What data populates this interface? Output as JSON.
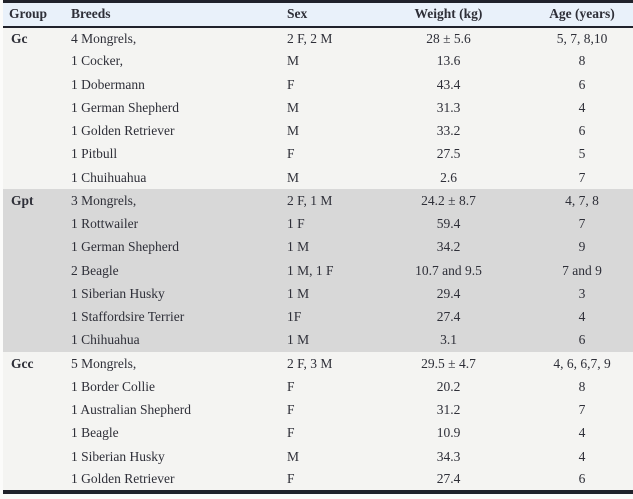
{
  "colors": {
    "border_dark": "#20222b",
    "header_background": "#e9f1fa",
    "shaded_band": "#d8d8d8",
    "row_background": "#f4f4f2",
    "text": "#2e2f38",
    "page_background": "#fbfbfa"
  },
  "table": {
    "columns": [
      {
        "label": "Group",
        "align": "left"
      },
      {
        "label": "Breeds",
        "align": "left"
      },
      {
        "label": "Sex",
        "align": "left"
      },
      {
        "label": "Weight (kg)",
        "align": "center"
      },
      {
        "label": "Age (years)",
        "align": "center"
      }
    ],
    "groups": [
      {
        "name": "Gc",
        "shaded": false,
        "rows": [
          {
            "breed": "4 Mongrels,",
            "sex": "2 F, 2 M",
            "weight": "28 ± 5.6",
            "age": "5, 7, 8,10"
          },
          {
            "breed": "1 Cocker,",
            "sex": "M",
            "weight": "13.6",
            "age": "8"
          },
          {
            "breed": "1 Dobermann",
            "sex": "F",
            "weight": "43.4",
            "age": "6"
          },
          {
            "breed": "1 German Shepherd",
            "sex": "M",
            "weight": "31.3",
            "age": "4"
          },
          {
            "breed": "1 Golden Retriever",
            "sex": "M",
            "weight": "33.2",
            "age": "6"
          },
          {
            "breed": "1 Pitbull",
            "sex": "F",
            "weight": "27.5",
            "age": "5"
          },
          {
            "breed": "1 Chuihuahua",
            "sex": "M",
            "weight": "2.6",
            "age": "7"
          }
        ]
      },
      {
        "name": "Gpt",
        "shaded": true,
        "rows": [
          {
            "breed": "3 Mongrels,",
            "sex": "2 F, 1 M",
            "weight": "24.2 ± 8.7",
            "age": "4, 7, 8"
          },
          {
            "breed": "1 Rottwailer",
            "sex": "1 F",
            "weight": "59.4",
            "age": "7"
          },
          {
            "breed": "1 German Shepherd",
            "sex": "1 M",
            "weight": "34.2",
            "age": "9"
          },
          {
            "breed": "2 Beagle",
            "sex": "1 M, 1 F",
            "weight": "10.7 and 9.5",
            "age": "7 and 9"
          },
          {
            "breed": "1 Siberian Husky",
            "sex": "1 M",
            "weight": "29.4",
            "age": "3"
          },
          {
            "breed": "1 Staffordsire Terrier",
            "sex": "1F",
            "weight": "27.4",
            "age": "4"
          },
          {
            "breed": "1 Chihuahua",
            "sex": "1 M",
            "weight": "3.1",
            "age": "6"
          }
        ]
      },
      {
        "name": "Gcc",
        "shaded": false,
        "rows": [
          {
            "breed": "5 Mongrels,",
            "sex": "2 F, 3 M",
            "weight": "29.5 ± 4.7",
            "age": "4, 6, 6,7, 9"
          },
          {
            "breed": "1 Border Collie",
            "sex": "F",
            "weight": "20.2",
            "age": "8"
          },
          {
            "breed": "1 Australian Shepherd",
            "sex": "F",
            "weight": "31.2",
            "age": "7"
          },
          {
            "breed": "1 Beagle",
            "sex": "F",
            "weight": "10.9",
            "age": "4"
          },
          {
            "breed": "1 Siberian Husky",
            "sex": "M",
            "weight": "34.3",
            "age": "4"
          },
          {
            "breed": "1 Golden Retriever",
            "sex": "F",
            "weight": "27.4",
            "age": "6"
          }
        ]
      }
    ]
  }
}
